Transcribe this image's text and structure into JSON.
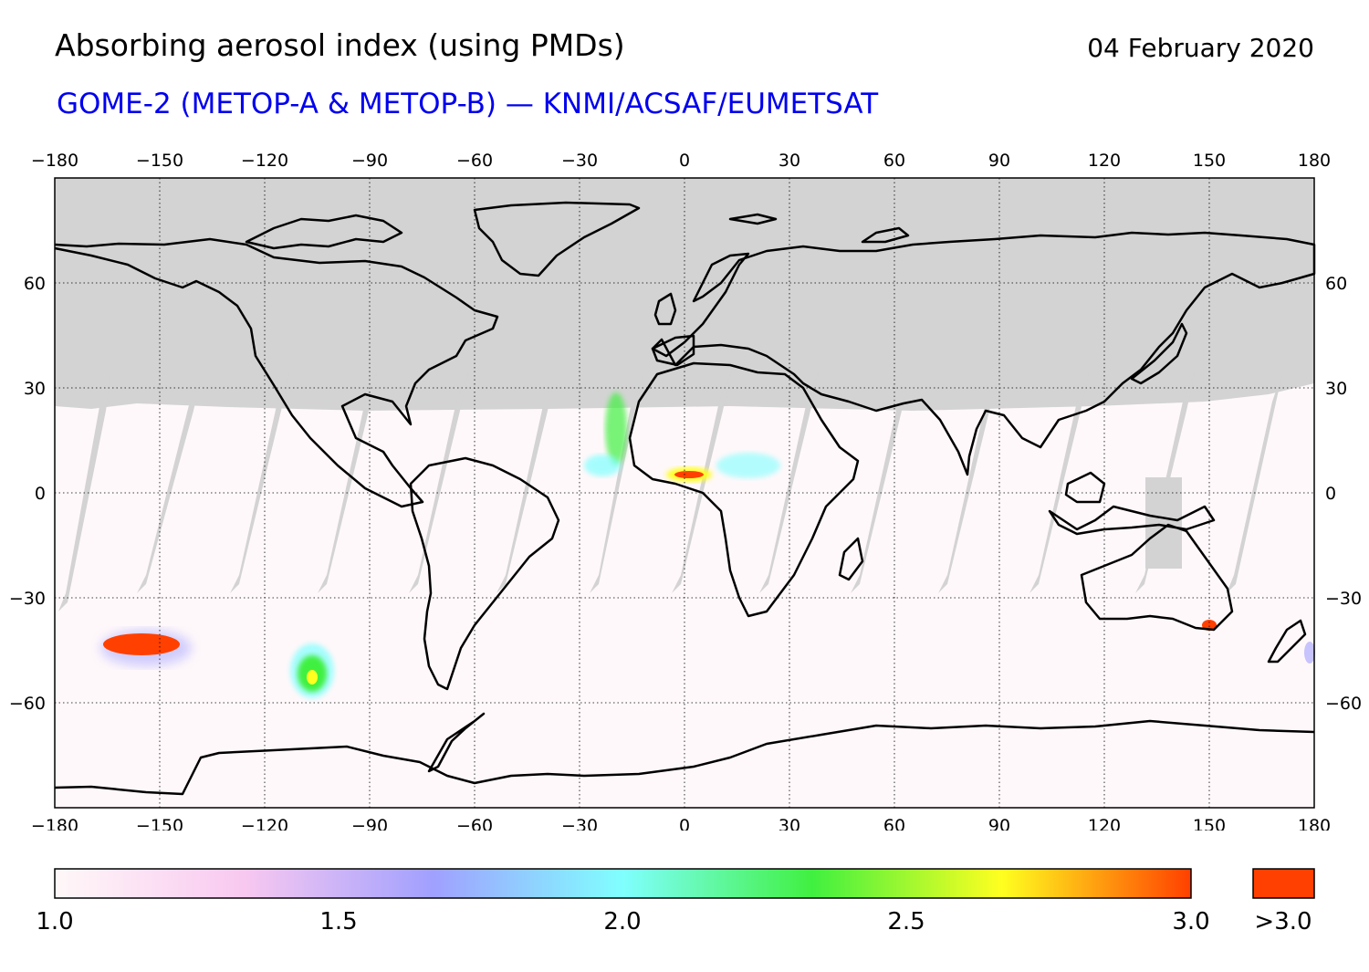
{
  "header": {
    "title": "Absorbing aerosol index (using PMDs)",
    "subtitle": "GOME-2 (METOP-A & METOP-B) — KNMI/ACSAF/EUMETSAT",
    "date": "04 February 2020"
  },
  "map": {
    "lon_ticks": [
      "−180",
      "−150",
      "−120",
      "−90",
      "−60",
      "−30",
      "0",
      "30",
      "60",
      "90",
      "120",
      "150",
      "180"
    ],
    "lat_ticks": [
      "60",
      "30",
      "0",
      "−30",
      "−60"
    ],
    "no_data_color": "#d3d3d3",
    "coastline_color": "#000000",
    "background_color": "#fff8fa"
  },
  "colorbar": {
    "labels": [
      "1.0",
      "1.5",
      "2.0",
      "2.5",
      "3.0"
    ],
    "overflow_label": ">3.0",
    "overflow_color": "#ff4000",
    "range": [
      1.0,
      3.0
    ],
    "gradient_colors": [
      "#fff8f8",
      "#f8c8f0",
      "#a0a0ff",
      "#80ffff",
      "#40f040",
      "#ffff20",
      "#ff4000"
    ]
  }
}
